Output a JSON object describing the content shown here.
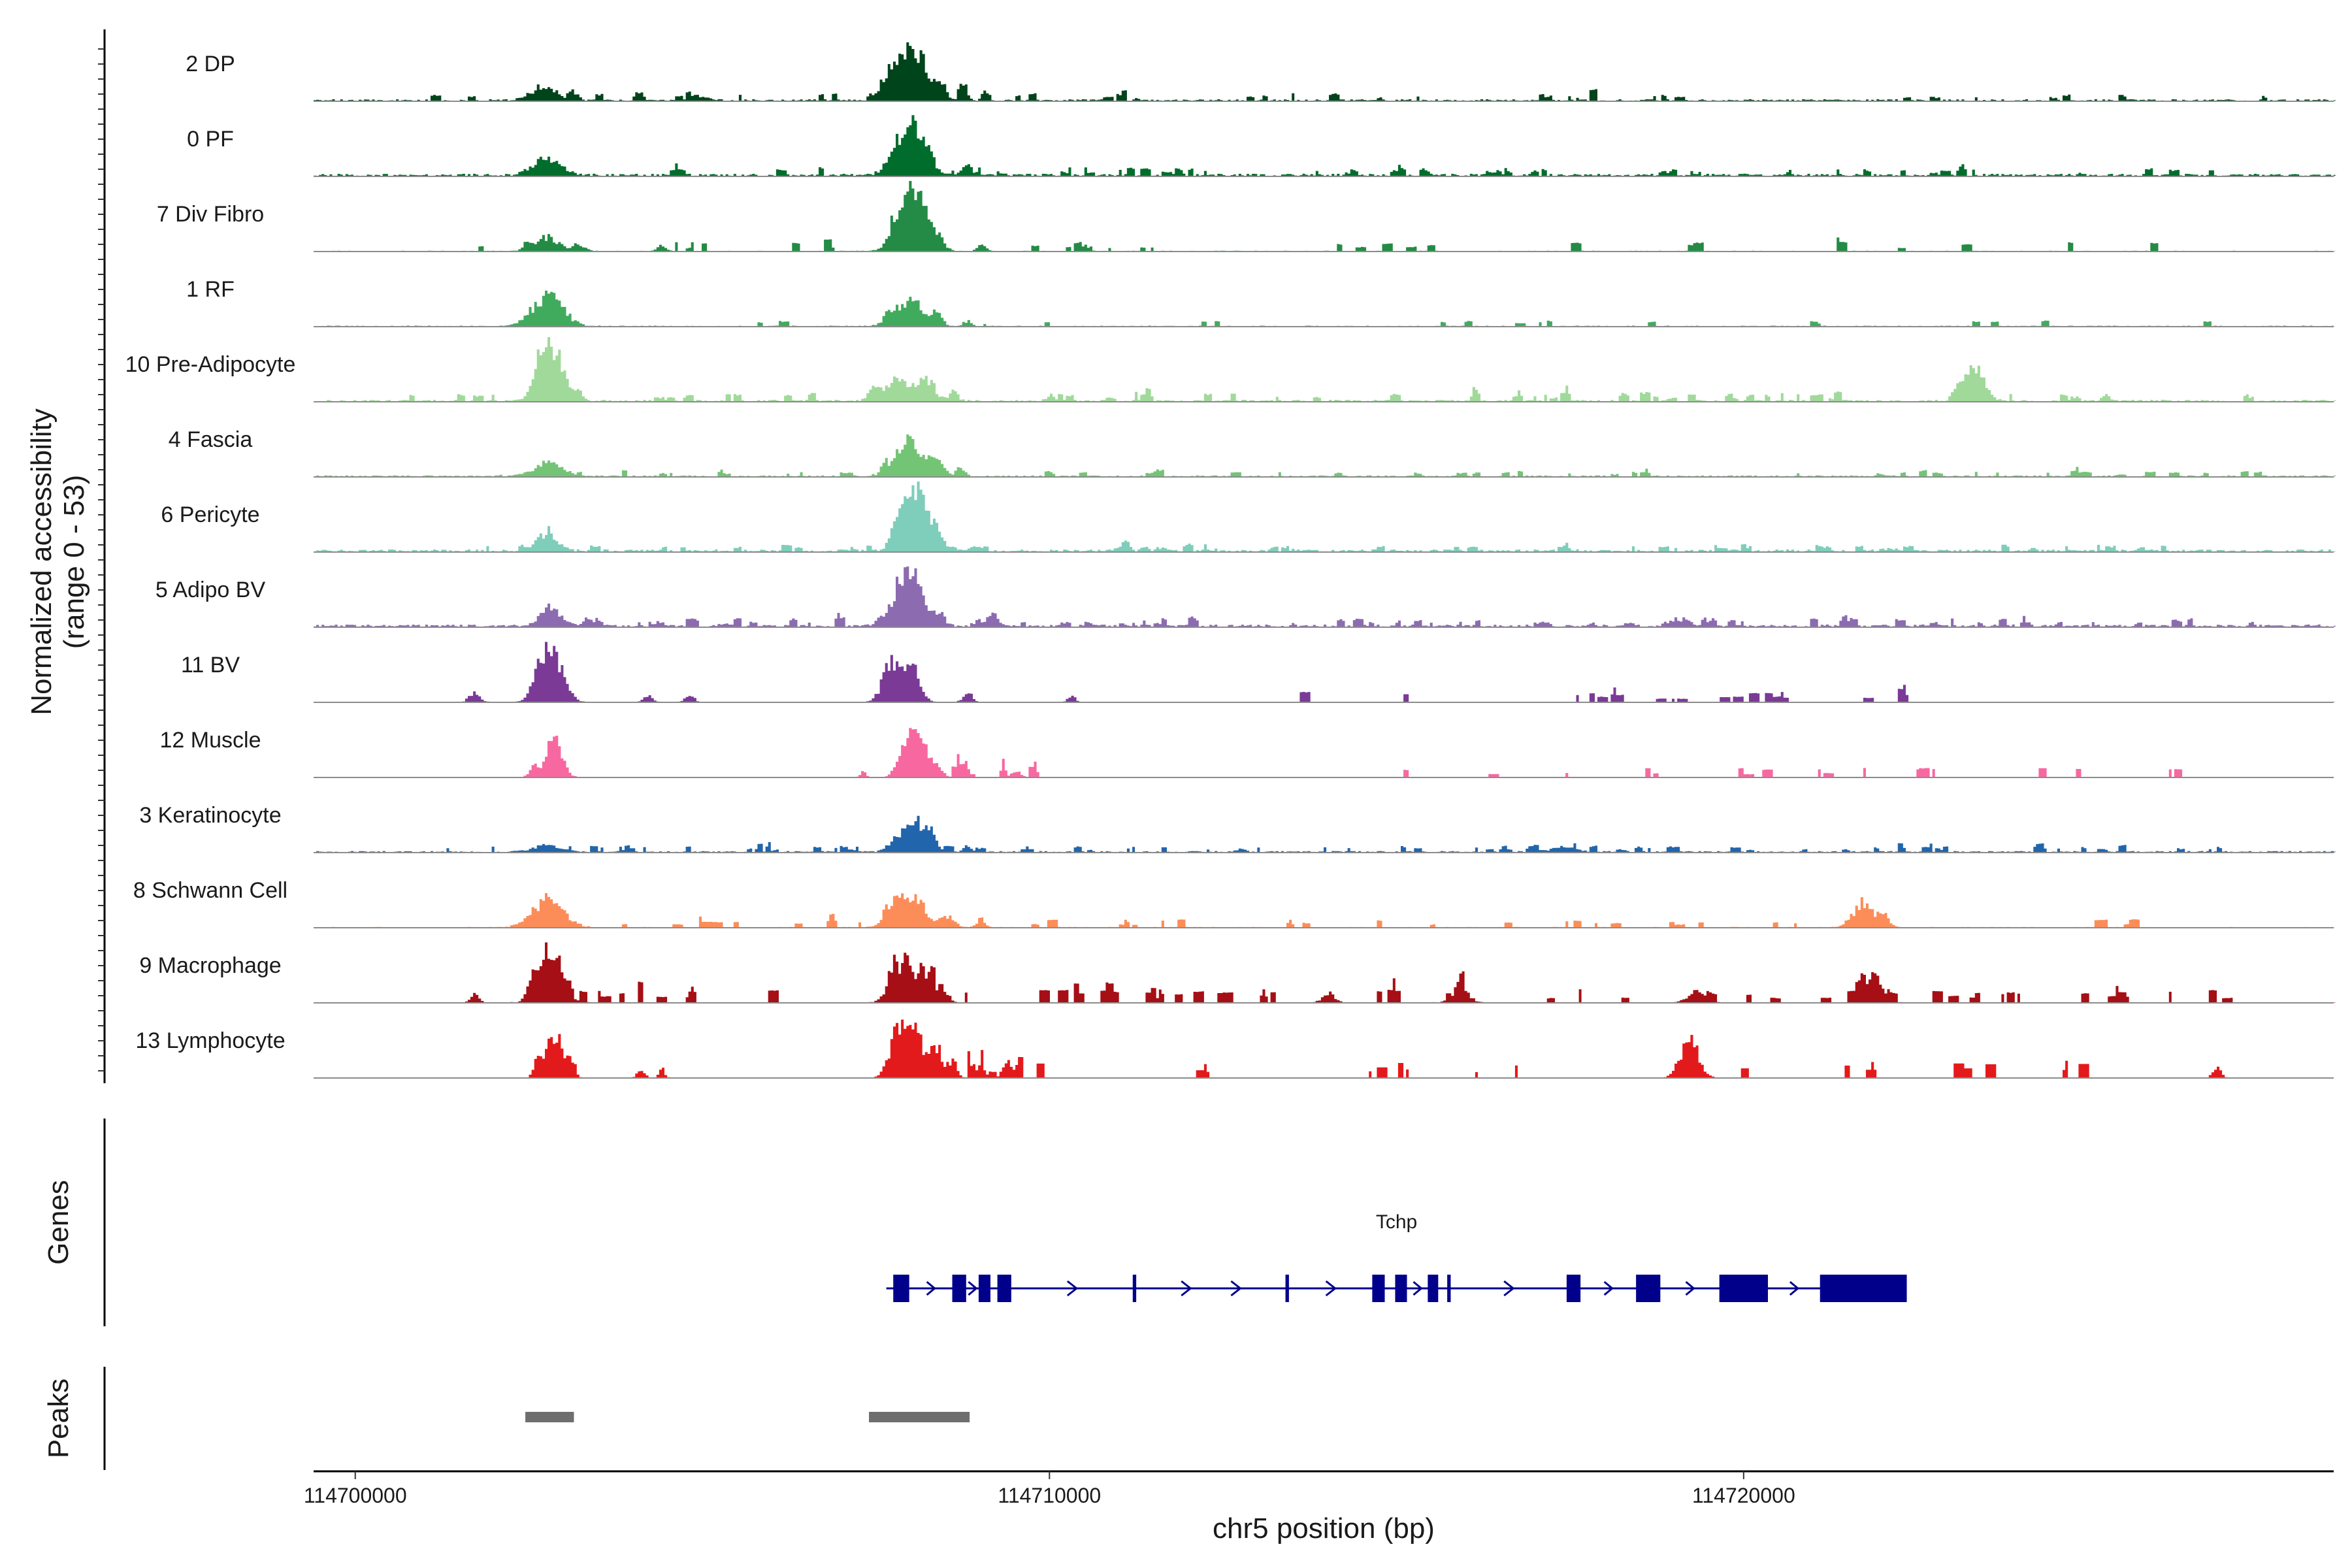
{
  "chart_data": {
    "type": "genome-coverage-track",
    "region": {
      "chrom": "chr5",
      "start": 114699400,
      "end": 114728500
    },
    "ylabel": "Normalized accessibility",
    "ylabel_range": "(range 0 - 53)",
    "xlabel": "chr5 position (bp)",
    "x_ticks": [
      114700000,
      114710000,
      114720000
    ],
    "y_range": [
      0,
      53
    ],
    "tracks": [
      {
        "name": "2 DP",
        "color": "#00441b",
        "peaks": [
          [
            114702700,
            180,
            13
          ],
          [
            114703150,
            60,
            6
          ],
          [
            114704900,
            120,
            5
          ],
          [
            114707700,
            140,
            28
          ],
          [
            114707950,
            120,
            38
          ],
          [
            114708150,
            100,
            28
          ],
          [
            114708400,
            80,
            18
          ],
          [
            114708750,
            60,
            10
          ],
          [
            114709050,
            40,
            6
          ]
        ],
        "baseline": 1.5,
        "rand": [
          [
            114701000,
            114728000,
            45,
            5
          ]
        ]
      },
      {
        "name": "0 PF",
        "color": "#006d2c",
        "peaks": [
          [
            114702750,
            200,
            17
          ],
          [
            114707800,
            140,
            30
          ],
          [
            114708050,
            100,
            40
          ],
          [
            114708250,
            90,
            20
          ],
          [
            114708800,
            80,
            9
          ]
        ],
        "baseline": 2,
        "rand": [
          [
            114704000,
            114727000,
            55,
            5
          ]
        ]
      },
      {
        "name": "7 Div Fibro",
        "color": "#238b45",
        "peaks": [
          [
            114702750,
            150,
            14
          ],
          [
            114702450,
            60,
            7
          ],
          [
            114703200,
            80,
            7
          ],
          [
            114704400,
            60,
            6
          ],
          [
            114707850,
            140,
            44
          ],
          [
            114708100,
            120,
            48
          ],
          [
            114708350,
            100,
            15
          ],
          [
            114709000,
            60,
            7
          ],
          [
            114710500,
            50,
            5
          ]
        ],
        "baseline": 0.6,
        "rand": [
          [
            114701700,
            114727300,
            30,
            7
          ]
        ]
      },
      {
        "name": "1 RF",
        "color": "#41ab5d",
        "peaks": [
          [
            114702750,
            220,
            28
          ],
          [
            114707750,
            120,
            18
          ],
          [
            114708050,
            110,
            25
          ],
          [
            114708350,
            80,
            14
          ],
          [
            114708800,
            60,
            5
          ]
        ],
        "baseline": 0.8,
        "rand": [
          [
            114705000,
            114727000,
            18,
            4
          ]
        ]
      },
      {
        "name": "10 Pre-Adipocyte",
        "color": "#a1d99b",
        "peaks": [
          [
            114702800,
            160,
            52
          ],
          [
            114702600,
            80,
            14
          ],
          [
            114703200,
            60,
            9
          ],
          [
            114707450,
            80,
            12
          ],
          [
            114707800,
            120,
            20
          ],
          [
            114708150,
            120,
            22
          ],
          [
            114708600,
            60,
            9
          ],
          [
            114710000,
            50,
            6
          ],
          [
            114716100,
            40,
            5
          ],
          [
            114723300,
            140,
            33
          ],
          [
            114723050,
            60,
            9
          ],
          [
            114725200,
            60,
            5
          ]
        ],
        "baseline": 1.5,
        "rand": [
          [
            114700700,
            114727500,
            60,
            6
          ]
        ]
      },
      {
        "name": "4 Fascia",
        "color": "#74c476",
        "peaks": [
          [
            114702750,
            200,
            13
          ],
          [
            114707800,
            150,
            20
          ],
          [
            114708050,
            130,
            26
          ],
          [
            114708350,
            100,
            14
          ],
          [
            114708700,
            60,
            8
          ]
        ],
        "baseline": 1.2,
        "rand": [
          [
            114701800,
            114727500,
            50,
            4
          ]
        ]
      },
      {
        "name": "6 Pericyte",
        "color": "#7fcdbb",
        "peaks": [
          [
            114702750,
            140,
            18
          ],
          [
            114707900,
            130,
            50
          ],
          [
            114708150,
            120,
            45
          ],
          [
            114708400,
            80,
            12
          ],
          [
            114708900,
            60,
            5
          ]
        ],
        "baseline": 2,
        "rand": [
          [
            114701800,
            114727500,
            60,
            4
          ]
        ]
      },
      {
        "name": "5 Adipo BV",
        "color": "#8c6bb1",
        "peaks": [
          [
            114702800,
            140,
            18
          ],
          [
            114703350,
            80,
            7
          ],
          [
            114707850,
            140,
            42
          ],
          [
            114708100,
            110,
            36
          ],
          [
            114708400,
            80,
            12
          ],
          [
            114709200,
            60,
            7
          ],
          [
            114719000,
            120,
            6
          ]
        ],
        "baseline": 2,
        "rand": [
          [
            114703000,
            114727500,
            70,
            5
          ]
        ]
      },
      {
        "name": "11 BV",
        "color": "#7a3a96",
        "peaks": [
          [
            114701700,
            80,
            8
          ],
          [
            114702800,
            160,
            50
          ],
          [
            114702600,
            80,
            12
          ],
          [
            114707700,
            120,
            35
          ],
          [
            114708000,
            110,
            38
          ],
          [
            114708800,
            60,
            10
          ],
          [
            114704200,
            60,
            7
          ],
          [
            114704800,
            60,
            7
          ],
          [
            114710300,
            50,
            6
          ]
        ],
        "baseline": 0.4,
        "rand": [
          [
            114713500,
            114723500,
            22,
            8
          ]
        ]
      },
      {
        "name": "12 Muscle",
        "color": "#f768a1",
        "peaks": [
          [
            114702850,
            110,
            40
          ],
          [
            114702550,
            60,
            10
          ],
          [
            114707900,
            100,
            32
          ],
          [
            114708100,
            100,
            40
          ],
          [
            114708350,
            80,
            12
          ],
          [
            114709500,
            60,
            7
          ],
          [
            114707300,
            40,
            5
          ]
        ],
        "baseline": 0.3,
        "rand": [
          [
            114708500,
            114709900,
            10,
            8
          ],
          [
            114715000,
            114726500,
            18,
            7
          ]
        ]
      },
      {
        "name": "3 Keratinocyte",
        "color": "#2166ac",
        "peaks": [
          [
            114702750,
            180,
            7
          ],
          [
            114707850,
            140,
            18
          ],
          [
            114708100,
            100,
            22
          ],
          [
            114708300,
            80,
            14
          ],
          [
            114708800,
            60,
            6
          ],
          [
            114717400,
            160,
            5
          ]
        ],
        "baseline": 1.2,
        "rand": [
          [
            114700800,
            114727500,
            80,
            4
          ]
        ]
      },
      {
        "name": "8 Schwann Cell",
        "color": "#fc8d59",
        "peaks": [
          [
            114702750,
            220,
            26
          ],
          [
            114707800,
            150,
            24
          ],
          [
            114708100,
            130,
            22
          ],
          [
            114708500,
            100,
            12
          ],
          [
            114709000,
            60,
            8
          ],
          [
            114721700,
            140,
            24
          ],
          [
            114722000,
            80,
            10
          ]
        ],
        "baseline": 0.6,
        "rand": [
          [
            114703500,
            114726500,
            40,
            6
          ]
        ]
      },
      {
        "name": "9 Macrophage",
        "color": "#a50f15",
        "peaks": [
          [
            114702800,
            160,
            50
          ],
          [
            114702550,
            80,
            14
          ],
          [
            114707800,
            130,
            36
          ],
          [
            114708150,
            130,
            30
          ],
          [
            114708450,
            80,
            12
          ],
          [
            114701700,
            60,
            8
          ],
          [
            114721850,
            120,
            22
          ],
          [
            114714000,
            80,
            10
          ],
          [
            114715900,
            120,
            12
          ],
          [
            114719300,
            120,
            10
          ]
        ],
        "baseline": 0.5,
        "rand": [
          [
            114703000,
            114727000,
            70,
            10
          ]
        ]
      },
      {
        "name": "13 Lymphocyte",
        "color": "#e31a1c",
        "peaks": [
          [
            114702850,
            110,
            46
          ],
          [
            114702600,
            50,
            18
          ],
          [
            114703100,
            50,
            18
          ],
          [
            114704100,
            50,
            9
          ],
          [
            114704400,
            40,
            9
          ],
          [
            114707800,
            120,
            45
          ],
          [
            114708050,
            110,
            40
          ],
          [
            114708350,
            100,
            28
          ],
          [
            114708600,
            60,
            14
          ],
          [
            114709000,
            50,
            14
          ],
          [
            114709350,
            50,
            14
          ],
          [
            114719200,
            130,
            36
          ],
          [
            114726800,
            60,
            9
          ]
        ],
        "baseline": 0,
        "rand": [
          [
            114708800,
            114710000,
            8,
            12
          ],
          [
            114711500,
            114725700,
            18,
            12
          ]
        ]
      }
    ],
    "genes_label": "Genes",
    "genes": [
      {
        "name": "Tchp",
        "strand": "+",
        "start": 114707650,
        "end": 114722350,
        "exons": [
          [
            114707750,
            114707980
          ],
          [
            114708600,
            114708800
          ],
          [
            114708980,
            114709150
          ],
          [
            114709250,
            114709450
          ],
          [
            114711200,
            114711250
          ],
          [
            114713400,
            114713450
          ],
          [
            114714650,
            114714830
          ],
          [
            114714980,
            114715150
          ],
          [
            114715450,
            114715600
          ],
          [
            114715730,
            114715780
          ],
          [
            114717450,
            114717650
          ],
          [
            114718450,
            114718800
          ],
          [
            114719650,
            114720350
          ],
          [
            114721100,
            114722350
          ]
        ]
      }
    ],
    "peaks_label": "Peaks",
    "peak_regions": [
      [
        114702450,
        114703150
      ],
      [
        114707400,
        114708850
      ]
    ]
  }
}
